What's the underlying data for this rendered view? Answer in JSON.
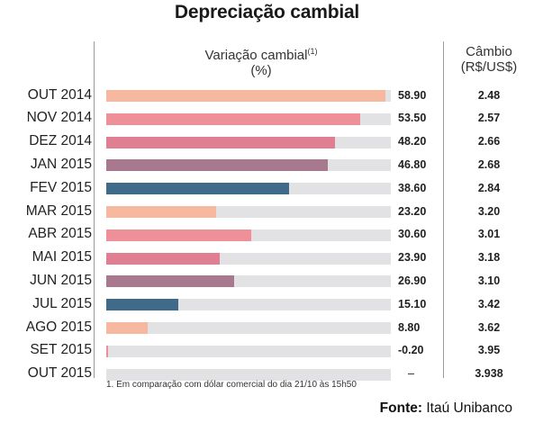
{
  "title": "Depreciação cambial",
  "column_headers": {
    "variation_main": "Variação cambial",
    "variation_sup": "(1)",
    "variation_unit": "(%)",
    "rate_main": "Câmbio",
    "rate_unit": "(R$/US$)"
  },
  "footnote": "1. Em comparação com dólar comercial do dia 21/10 às 15h50",
  "source": {
    "label": "Fonte:",
    "name": "Itaú Unibanco"
  },
  "colors": {
    "peach": "#f7b8a0",
    "pink": "#ef8f97",
    "rose": "#e07f92",
    "mauve": "#a8788e",
    "navy": "#3f6a8a",
    "track": "#e2e2e4"
  },
  "chart_data": {
    "type": "bar",
    "orientation": "horizontal",
    "title": "Depreciação cambial",
    "categories": [
      "OUT 2014",
      "NOV 2014",
      "DEZ 2014",
      "JAN 2015",
      "FEV 2015",
      "MAR 2015",
      "ABR 2015",
      "MAI 2015",
      "JUN 2015",
      "JUL 2015",
      "AGO 2015",
      "SET 2015",
      "OUT 2015"
    ],
    "series": [
      {
        "name": "Variação cambial (%)",
        "values": [
          58.9,
          53.5,
          48.2,
          46.8,
          38.6,
          23.2,
          30.6,
          23.9,
          26.9,
          15.1,
          8.8,
          -0.2,
          null
        ],
        "labels": [
          "58.90",
          "53.50",
          "48.20",
          "46.80",
          "38.60",
          "23.20",
          "30.60",
          "23.90",
          "26.90",
          "15.10",
          "8.80",
          "-0.20",
          "–"
        ]
      },
      {
        "name": "Câmbio (R$/US$)",
        "values": [
          2.48,
          2.57,
          2.66,
          2.68,
          2.84,
          3.2,
          3.01,
          3.18,
          3.1,
          3.42,
          3.62,
          3.95,
          3.938
        ],
        "labels": [
          "2.48",
          "2.57",
          "2.66",
          "2.68",
          "2.84",
          "3.20",
          "3.01",
          "3.18",
          "3.10",
          "3.42",
          "3.62",
          "3.95",
          "3.938"
        ]
      }
    ],
    "bar_colors": [
      "peach",
      "pink",
      "rose",
      "mauve",
      "navy",
      "peach",
      "pink",
      "rose",
      "mauve",
      "navy",
      "peach",
      "pink",
      "rose"
    ],
    "xlim": [
      0,
      60
    ],
    "grid": false,
    "legend": "none"
  }
}
